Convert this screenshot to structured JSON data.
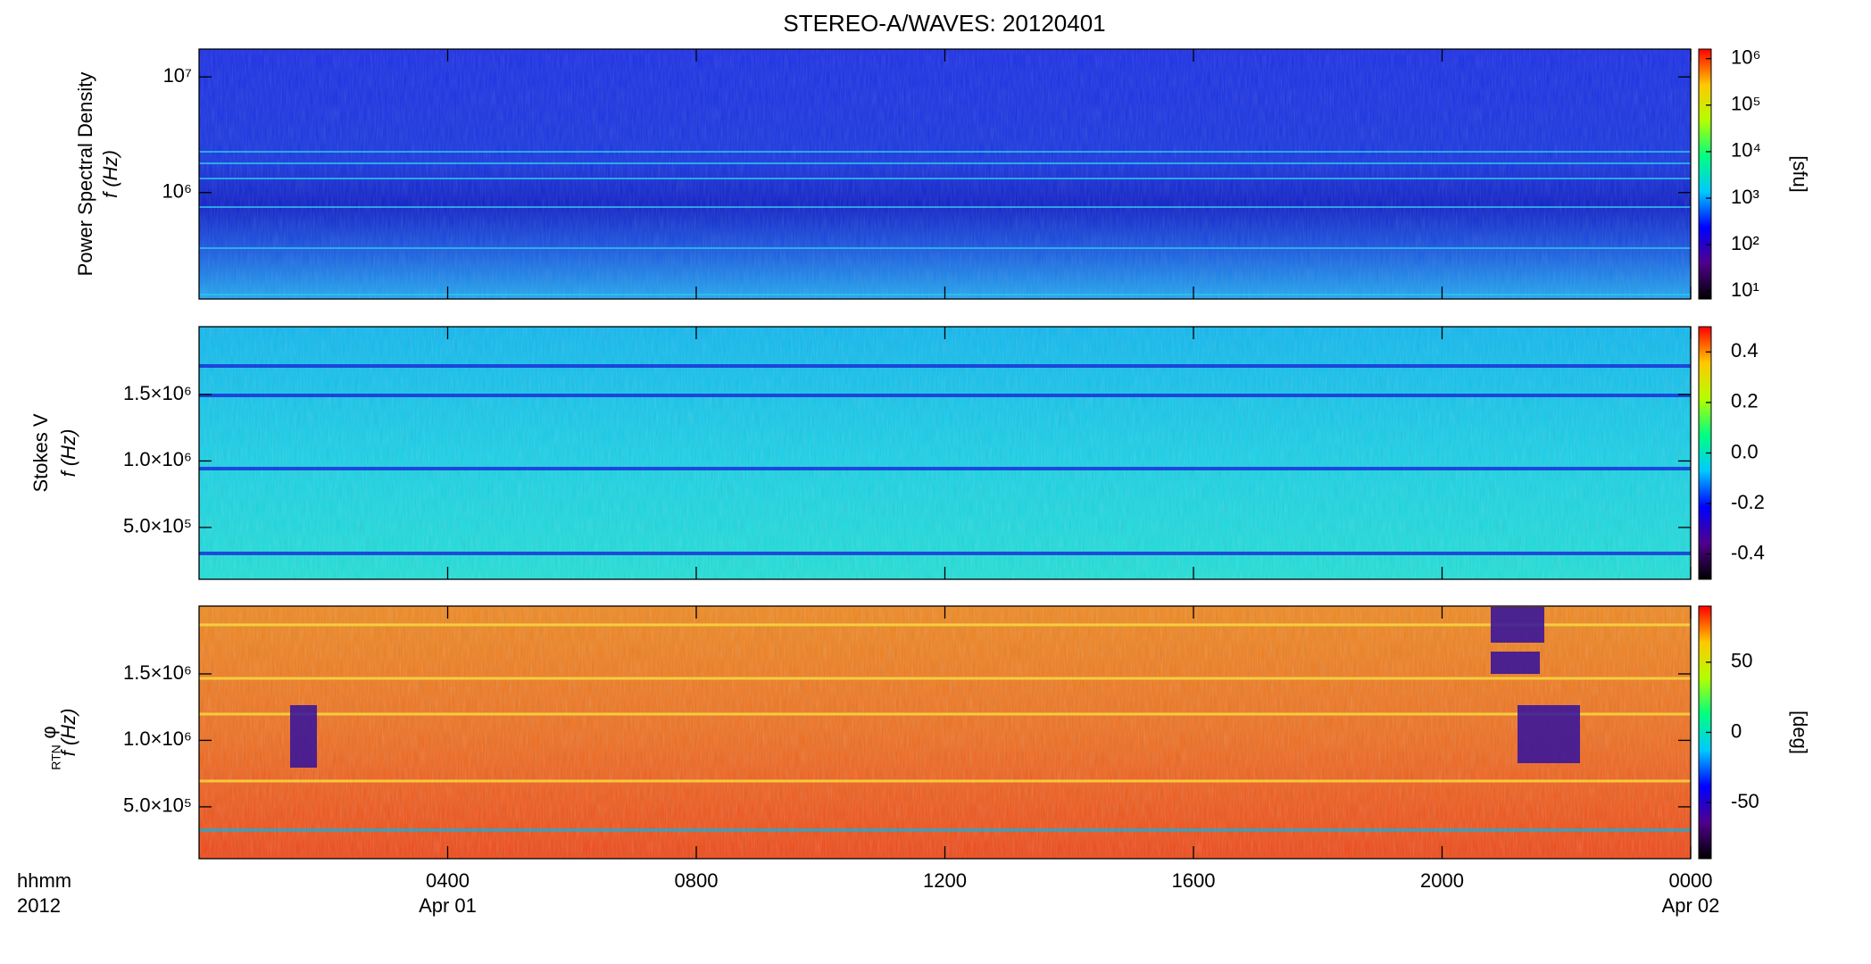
{
  "chart_data": {
    "type": "heatmap",
    "title": "STEREO-A/WAVES: 20120401",
    "colormap": [
      "#000000",
      "#50008c",
      "#0000ff",
      "#00c8ff",
      "#00ff80",
      "#b4ff00",
      "#ffc800",
      "#ff0000"
    ],
    "x_axis": {
      "xlim": [
        0,
        24
      ],
      "xticks": [
        {
          "value": 4,
          "label": "0400"
        },
        {
          "value": 8,
          "label": "0800"
        },
        {
          "value": 12,
          "label": "1200"
        },
        {
          "value": 16,
          "label": "1600"
        },
        {
          "value": 20,
          "label": "2000"
        },
        {
          "value": 24,
          "label": "0000"
        }
      ],
      "dates": [
        {
          "value": 4,
          "label": "Apr 01"
        },
        {
          "value": 24,
          "label": "Apr 02"
        }
      ],
      "unit_label": "hhmm",
      "year": "2012"
    },
    "panels": [
      {
        "ylabel": "Power Spectral Density",
        "ylabel_unit": "f (Hz)",
        "ylog": true,
        "ylim": [
          120000,
          17400000
        ],
        "yticks": [
          {
            "value": 1000000,
            "label": "10⁶"
          },
          {
            "value": 10000000,
            "label": "10⁷"
          }
        ],
        "clog": true,
        "clim": [
          6.8,
          1600000
        ],
        "cticks": [
          {
            "value": 10,
            "label": "10¹"
          },
          {
            "value": 100,
            "label": "10²"
          },
          {
            "value": 1000,
            "label": "10³"
          },
          {
            "value": 10000,
            "label": "10⁴"
          },
          {
            "value": 100000,
            "label": "10⁵"
          },
          {
            "value": 1000000,
            "label": "10⁶"
          }
        ],
        "clabel": "[sfu]"
      },
      {
        "ylabel": "Stokes V",
        "ylabel_unit": "f (Hz)",
        "ylog": false,
        "ylim": [
          110000,
          2010000
        ],
        "yticks": [
          {
            "value": 500000,
            "label": "5.0×10⁵"
          },
          {
            "value": 1000000,
            "label": "1.0×10⁶"
          },
          {
            "value": 1500000,
            "label": "1.5×10⁶"
          }
        ],
        "clog": false,
        "clim": [
          -0.5,
          0.5
        ],
        "cticks": [
          {
            "value": -0.4,
            "label": "-0.4"
          },
          {
            "value": -0.2,
            "label": "-0.2"
          },
          {
            "value": 0.0,
            "label": "0.0"
          },
          {
            "value": 0.2,
            "label": "0.2"
          },
          {
            "value": 0.4,
            "label": "0.4"
          }
        ]
      },
      {
        "ylabel": "φ",
        "ylabel_sub": "RTN",
        "ylabel_unit": "f (Hz)",
        "ylog": false,
        "ylim": [
          110000,
          2010000
        ],
        "yticks": [
          {
            "value": 500000,
            "label": "5.0×10⁵"
          },
          {
            "value": 1000000,
            "label": "1.0×10⁶"
          },
          {
            "value": 1500000,
            "label": "1.5×10⁶"
          }
        ],
        "clog": false,
        "clim": [
          -90,
          90
        ],
        "cticks": [
          -50,
          0,
          50
        ],
        "clabel": "[deg]"
      }
    ]
  }
}
